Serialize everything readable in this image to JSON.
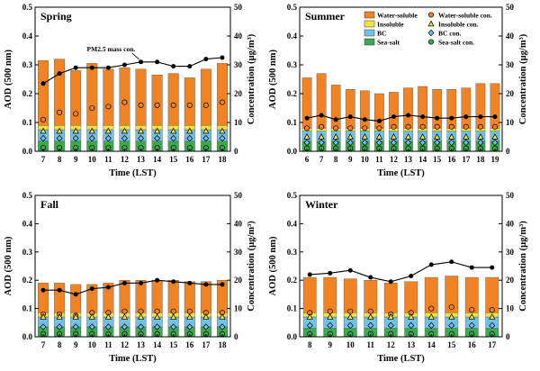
{
  "figure": {
    "left_axis_label": "AOD (500 nm)",
    "right_axis_label": "Concentration (µg/m³)",
    "x_axis_label": "Time (LST)"
  },
  "legend": {
    "items": [
      {
        "key": "ws",
        "label": "Water-soluble",
        "marker": "bar",
        "color": "#F28322"
      },
      {
        "key": "ins",
        "label": "Insoluble",
        "marker": "bar",
        "color": "#F2E33C"
      },
      {
        "key": "bc",
        "label": "BC",
        "marker": "bar",
        "color": "#6FC1E8"
      },
      {
        "key": "ss",
        "label": "Sea-salt",
        "marker": "bar",
        "color": "#3BAA4A"
      },
      {
        "key": "ws_con",
        "label": "Water-soluble con.",
        "marker": "circle",
        "color": "#F28322"
      },
      {
        "key": "ins_con",
        "label": "Insoluble con.",
        "marker": "triangle",
        "color": "#F2E33C"
      },
      {
        "key": "bc_con",
        "label": "BC con.",
        "marker": "diamond",
        "color": "#6FC1E8"
      },
      {
        "key": "ss_con",
        "label": "Sea-salt con.",
        "marker": "circle",
        "color": "#3BAA4A"
      }
    ]
  },
  "colors": {
    "ws": "#F28322",
    "ins": "#F2E33C",
    "bc": "#6FC1E8",
    "ss": "#3BAA4A",
    "pm": "#000000"
  },
  "chart_data": [
    {
      "type": "bar",
      "stacked": true,
      "title": "Spring",
      "annotation": "PM2.5 mass con.",
      "xlabel": "Time (LST)",
      "ylabel": "AOD (500 nm)",
      "y2label": "Concentration (µg/m³)",
      "ylim": [
        0,
        0.5
      ],
      "yticks": [
        0.0,
        0.1,
        0.2,
        0.3,
        0.4,
        0.5
      ],
      "y2lim": [
        0,
        50
      ],
      "y2ticks": [
        0,
        10,
        20,
        30,
        40,
        50
      ],
      "categories": [
        "7",
        "8",
        "9",
        "10",
        "11",
        "12",
        "13",
        "14",
        "15",
        "16",
        "17",
        "18"
      ],
      "series": [
        {
          "name": "Sea-salt",
          "values": [
            0.035,
            0.035,
            0.035,
            0.035,
            0.035,
            0.035,
            0.035,
            0.035,
            0.035,
            0.035,
            0.035,
            0.035
          ]
        },
        {
          "name": "BC",
          "values": [
            0.04,
            0.04,
            0.04,
            0.04,
            0.04,
            0.04,
            0.04,
            0.04,
            0.04,
            0.04,
            0.04,
            0.04
          ]
        },
        {
          "name": "Insoluble",
          "values": [
            0.015,
            0.015,
            0.015,
            0.015,
            0.015,
            0.015,
            0.015,
            0.015,
            0.015,
            0.015,
            0.015,
            0.015
          ]
        },
        {
          "name": "Water-soluble",
          "values": [
            0.225,
            0.23,
            0.19,
            0.215,
            0.195,
            0.2,
            0.195,
            0.175,
            0.18,
            0.165,
            0.195,
            0.215
          ]
        }
      ],
      "concentrations": [
        {
          "name": "PM2.5 mass con.",
          "values": [
            23.5,
            27,
            29,
            29,
            29,
            30,
            31,
            31,
            29.5,
            29.5,
            32,
            32.5
          ]
        },
        {
          "name": "Water-soluble con.",
          "values": [
            11,
            13.5,
            13,
            15,
            15.5,
            17,
            16,
            16,
            16,
            16,
            16,
            17
          ]
        },
        {
          "name": "Insoluble con.",
          "values": [
            7,
            7,
            7,
            7,
            7,
            7,
            7,
            7,
            7,
            7,
            7,
            7
          ]
        },
        {
          "name": "BC con.",
          "values": [
            4.5,
            4.5,
            4.5,
            4.5,
            4.5,
            4.5,
            4.5,
            4.5,
            4.5,
            4.5,
            4.5,
            4.5
          ]
        },
        {
          "name": "Sea-salt con.",
          "values": [
            1.2,
            1.2,
            1.2,
            1.2,
            1.2,
            1.2,
            1.2,
            1.2,
            1.2,
            1.2,
            1.2,
            1.2
          ]
        }
      ],
      "legend": false
    },
    {
      "type": "bar",
      "stacked": true,
      "title": "Summer",
      "xlabel": "Time (LST)",
      "ylabel": "AOD (500 nm)",
      "y2label": "Concentration (µg/m³)",
      "ylim": [
        0,
        0.5
      ],
      "yticks": [
        0.0,
        0.1,
        0.2,
        0.3,
        0.4,
        0.5
      ],
      "y2lim": [
        0,
        50
      ],
      "y2ticks": [
        0,
        10,
        20,
        30,
        40,
        50
      ],
      "categories": [
        "6",
        "7",
        "8",
        "9",
        "10",
        "11",
        "12",
        "13",
        "14",
        "15",
        "16",
        "17",
        "18",
        "19"
      ],
      "series": [
        {
          "name": "Sea-salt",
          "values": [
            0.035,
            0.035,
            0.035,
            0.035,
            0.035,
            0.035,
            0.035,
            0.035,
            0.035,
            0.035,
            0.035,
            0.035,
            0.035,
            0.035
          ]
        },
        {
          "name": "BC",
          "values": [
            0.035,
            0.035,
            0.035,
            0.035,
            0.035,
            0.035,
            0.035,
            0.035,
            0.035,
            0.035,
            0.035,
            0.035,
            0.035,
            0.035
          ]
        },
        {
          "name": "Insoluble",
          "values": [
            0.01,
            0.01,
            0.01,
            0.01,
            0.01,
            0.01,
            0.01,
            0.01,
            0.01,
            0.01,
            0.01,
            0.01,
            0.01,
            0.01
          ]
        },
        {
          "name": "Water-soluble",
          "values": [
            0.175,
            0.19,
            0.15,
            0.135,
            0.13,
            0.12,
            0.125,
            0.14,
            0.145,
            0.135,
            0.135,
            0.14,
            0.155,
            0.155
          ]
        }
      ],
      "concentrations": [
        {
          "name": "PM2.5 mass con.",
          "values": [
            11.5,
            12.5,
            11,
            12,
            11,
            10.5,
            12,
            12.5,
            12,
            11.5,
            11.5,
            12,
            12,
            12
          ]
        },
        {
          "name": "Water-soluble con.",
          "values": [
            8,
            8.5,
            8,
            8,
            8,
            8,
            8.5,
            8.5,
            8.5,
            8.5,
            8.5,
            8.5,
            8.5,
            8.5
          ]
        },
        {
          "name": "Insoluble con.",
          "values": [
            5,
            5,
            5,
            5,
            5,
            5,
            5,
            5,
            5,
            5,
            5,
            5,
            5,
            5
          ]
        },
        {
          "name": "BC con.",
          "values": [
            3,
            3,
            3,
            3,
            3,
            3,
            3,
            3,
            3,
            3,
            3,
            3,
            3,
            3
          ]
        },
        {
          "name": "Sea-salt con.",
          "values": [
            1,
            1,
            1,
            1,
            1,
            1,
            1,
            1,
            1,
            1,
            1,
            1,
            1,
            1
          ]
        }
      ],
      "legend": true
    },
    {
      "type": "bar",
      "stacked": true,
      "title": "Fall",
      "xlabel": "Time (LST)",
      "ylabel": "AOD (500 nm)",
      "y2label": "Concentration (µg/m³)",
      "ylim": [
        0,
        0.5
      ],
      "yticks": [
        0.0,
        0.1,
        0.2,
        0.3,
        0.4,
        0.5
      ],
      "y2lim": [
        0,
        50
      ],
      "y2ticks": [
        0,
        10,
        20,
        30,
        40,
        50
      ],
      "categories": [
        "7",
        "8",
        "9",
        "10",
        "11",
        "12",
        "13",
        "14",
        "15",
        "16",
        "17",
        "18"
      ],
      "series": [
        {
          "name": "Sea-salt",
          "values": [
            0.035,
            0.035,
            0.035,
            0.035,
            0.035,
            0.035,
            0.035,
            0.035,
            0.035,
            0.035,
            0.035,
            0.035
          ]
        },
        {
          "name": "BC",
          "values": [
            0.035,
            0.035,
            0.035,
            0.035,
            0.035,
            0.035,
            0.035,
            0.035,
            0.035,
            0.035,
            0.035,
            0.035
          ]
        },
        {
          "name": "Insoluble",
          "values": [
            0.015,
            0.015,
            0.015,
            0.015,
            0.015,
            0.015,
            0.015,
            0.015,
            0.015,
            0.015,
            0.015,
            0.015
          ]
        },
        {
          "name": "Water-soluble",
          "values": [
            0.105,
            0.105,
            0.1,
            0.1,
            0.105,
            0.115,
            0.115,
            0.115,
            0.115,
            0.11,
            0.11,
            0.115
          ]
        }
      ],
      "concentrations": [
        {
          "name": "PM2.5 mass con.",
          "values": [
            16.5,
            16.5,
            15,
            17,
            17.5,
            19,
            19,
            20,
            19.5,
            19,
            18.5,
            18.5
          ]
        },
        {
          "name": "Water-soluble con.",
          "values": [
            8,
            8,
            7.5,
            8.5,
            8.5,
            9,
            9,
            9,
            9,
            9,
            8.5,
            8.5
          ]
        },
        {
          "name": "Insoluble con.",
          "values": [
            7,
            7,
            7,
            7,
            7,
            7,
            7,
            7,
            7,
            7,
            7,
            7
          ]
        },
        {
          "name": "BC con.",
          "values": [
            3.5,
            3.5,
            3.5,
            3.5,
            3.5,
            3.5,
            3.5,
            3.5,
            3.5,
            3.5,
            3.5,
            3.5
          ]
        },
        {
          "name": "Sea-salt con.",
          "values": [
            1,
            1,
            1,
            1,
            1,
            1,
            1,
            1,
            1,
            1,
            1,
            1
          ]
        }
      ],
      "legend": false
    },
    {
      "type": "bar",
      "stacked": true,
      "title": "Winter",
      "xlabel": "Time (LST)",
      "ylabel": "AOD (500 nm)",
      "y2label": "Concentration (µg/m³)",
      "ylim": [
        0,
        0.5
      ],
      "yticks": [
        0.0,
        0.1,
        0.2,
        0.3,
        0.4,
        0.5
      ],
      "y2lim": [
        0,
        50
      ],
      "y2ticks": [
        0,
        10,
        20,
        30,
        40,
        50
      ],
      "categories": [
        "8",
        "9",
        "10",
        "11",
        "12",
        "13",
        "14",
        "15",
        "16",
        "17"
      ],
      "series": [
        {
          "name": "Sea-salt",
          "values": [
            0.03,
            0.03,
            0.03,
            0.03,
            0.03,
            0.03,
            0.03,
            0.03,
            0.03,
            0.03
          ]
        },
        {
          "name": "BC",
          "values": [
            0.04,
            0.04,
            0.04,
            0.04,
            0.04,
            0.04,
            0.04,
            0.04,
            0.04,
            0.04
          ]
        },
        {
          "name": "Insoluble",
          "values": [
            0.015,
            0.015,
            0.015,
            0.015,
            0.015,
            0.015,
            0.015,
            0.015,
            0.015,
            0.015
          ]
        },
        {
          "name": "Water-soluble",
          "values": [
            0.125,
            0.125,
            0.12,
            0.115,
            0.105,
            0.11,
            0.125,
            0.13,
            0.125,
            0.125
          ]
        }
      ],
      "concentrations": [
        {
          "name": "PM2.5 mass con.",
          "values": [
            22,
            22.5,
            23.5,
            21,
            19.5,
            21.5,
            25.5,
            26.5,
            24.5,
            24.5
          ]
        },
        {
          "name": "Water-soluble con.",
          "values": [
            8.5,
            9,
            9,
            9,
            8,
            8.5,
            10,
            10.5,
            9.5,
            9.5
          ]
        },
        {
          "name": "Insoluble con.",
          "values": [
            7,
            7,
            7,
            7,
            7,
            7,
            7,
            7,
            7,
            7
          ]
        },
        {
          "name": "BC con.",
          "values": [
            4,
            4,
            4,
            4,
            4,
            4,
            4,
            4,
            4,
            4
          ]
        },
        {
          "name": "Sea-salt con.",
          "values": [
            1,
            1,
            1,
            1,
            1,
            1,
            1,
            1,
            1,
            1
          ]
        }
      ],
      "legend": false
    }
  ]
}
